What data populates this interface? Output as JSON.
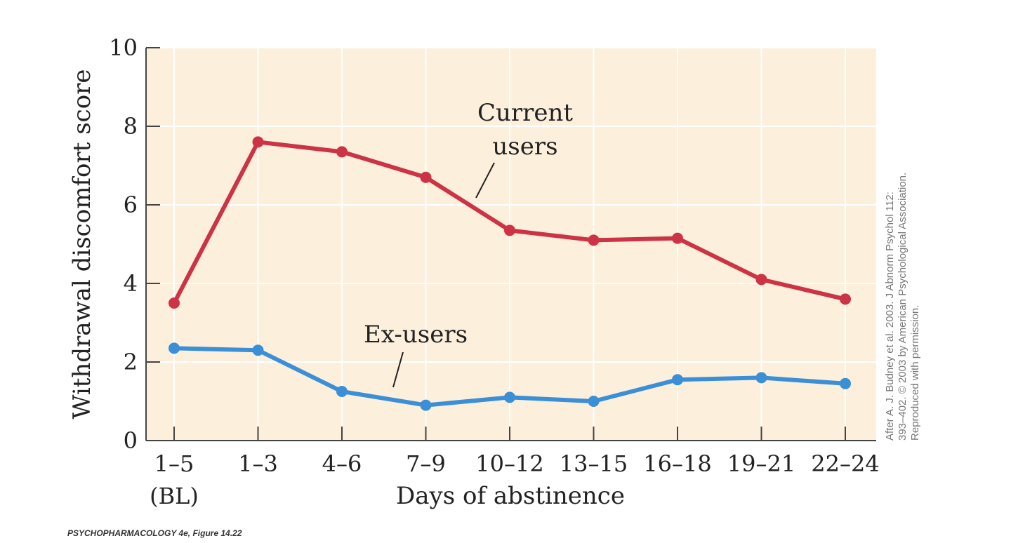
{
  "chart_data": {
    "type": "line",
    "title": "",
    "xlabel": "Days of abstinence",
    "ylabel": "Withdrawal discomfort score",
    "categories": [
      "1–5",
      "1–3",
      "4–6",
      "7–9",
      "10–12",
      "13–15",
      "16–18",
      "19–21",
      "22–24"
    ],
    "category_sublabels": [
      "(BL)",
      "",
      "",
      "",
      "",
      "",
      "",
      "",
      ""
    ],
    "ylim": [
      0,
      10
    ],
    "yticks": [
      0,
      2,
      4,
      6,
      8,
      10
    ],
    "grid": true,
    "series": [
      {
        "name": "Current users",
        "label_lines": [
          "Current",
          "users"
        ],
        "color": "#cc3344",
        "values": [
          3.5,
          7.6,
          7.35,
          6.7,
          5.35,
          5.1,
          5.15,
          4.1,
          3.6
        ]
      },
      {
        "name": "Ex-users",
        "label_lines": [
          "Ex-users"
        ],
        "color": "#3a8fd6",
        "values": [
          2.35,
          2.3,
          1.25,
          0.9,
          1.1,
          1.0,
          1.55,
          1.6,
          1.45
        ]
      }
    ],
    "background_color": "#fcefdc"
  },
  "credit": {
    "lines": [
      "After A. J. Budney et al. 2003. J Abnorm Psychol 112:",
      "393–402. © 2003 by American Psychological Association.",
      "Reproduced with permission."
    ]
  },
  "footer": {
    "caption": "PSYCHOPHARMACOLOGY 4e, Figure 14.22"
  }
}
